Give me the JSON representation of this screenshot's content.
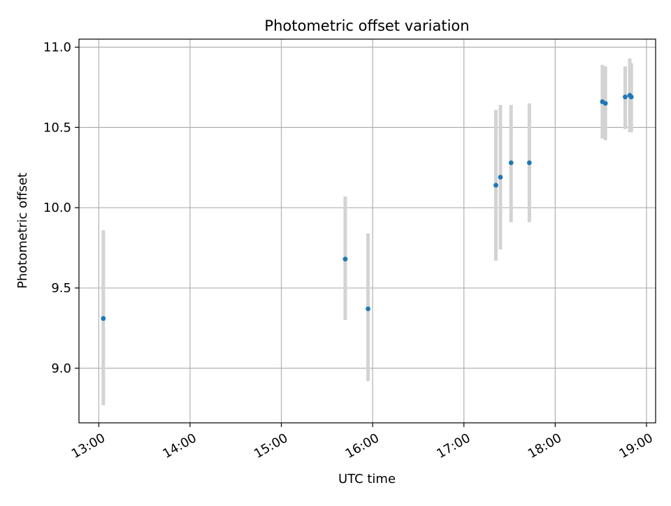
{
  "chart_data": {
    "type": "scatter",
    "title": "Photometric offset variation",
    "xlabel": "UTC time",
    "ylabel": "Photometric offset",
    "x_ticks": [
      "13:00",
      "14:00",
      "15:00",
      "16:00",
      "17:00",
      "18:00",
      "19:00"
    ],
    "y_ticks": [
      "9.0",
      "9.5",
      "10.0",
      "10.5",
      "11.0"
    ],
    "xlim": [
      "12:47",
      "19:06"
    ],
    "ylim": [
      8.66,
      11.05
    ],
    "grid": true,
    "point_color": "#1f77b4",
    "errorbar_color": "#d3d3d3",
    "points": [
      {
        "x": "13:03",
        "y": 9.31,
        "ylow": 8.77,
        "yhigh": 9.86
      },
      {
        "x": "15:42",
        "y": 9.68,
        "ylow": 9.3,
        "yhigh": 10.07
      },
      {
        "x": "15:57",
        "y": 9.37,
        "ylow": 8.92,
        "yhigh": 9.84
      },
      {
        "x": "17:21",
        "y": 10.14,
        "ylow": 9.67,
        "yhigh": 10.61
      },
      {
        "x": "17:24",
        "y": 10.19,
        "ylow": 9.74,
        "yhigh": 10.64
      },
      {
        "x": "17:31",
        "y": 10.28,
        "ylow": 9.91,
        "yhigh": 10.64
      },
      {
        "x": "17:43",
        "y": 10.28,
        "ylow": 9.91,
        "yhigh": 10.65
      },
      {
        "x": "18:31",
        "y": 10.66,
        "ylow": 10.43,
        "yhigh": 10.89
      },
      {
        "x": "18:33",
        "y": 10.65,
        "ylow": 10.42,
        "yhigh": 10.88
      },
      {
        "x": "18:46",
        "y": 10.69,
        "ylow": 10.49,
        "yhigh": 10.88
      },
      {
        "x": "18:49",
        "y": 10.7,
        "ylow": 10.47,
        "yhigh": 10.93
      },
      {
        "x": "18:50",
        "y": 10.69,
        "ylow": 10.47,
        "yhigh": 10.9
      }
    ]
  }
}
